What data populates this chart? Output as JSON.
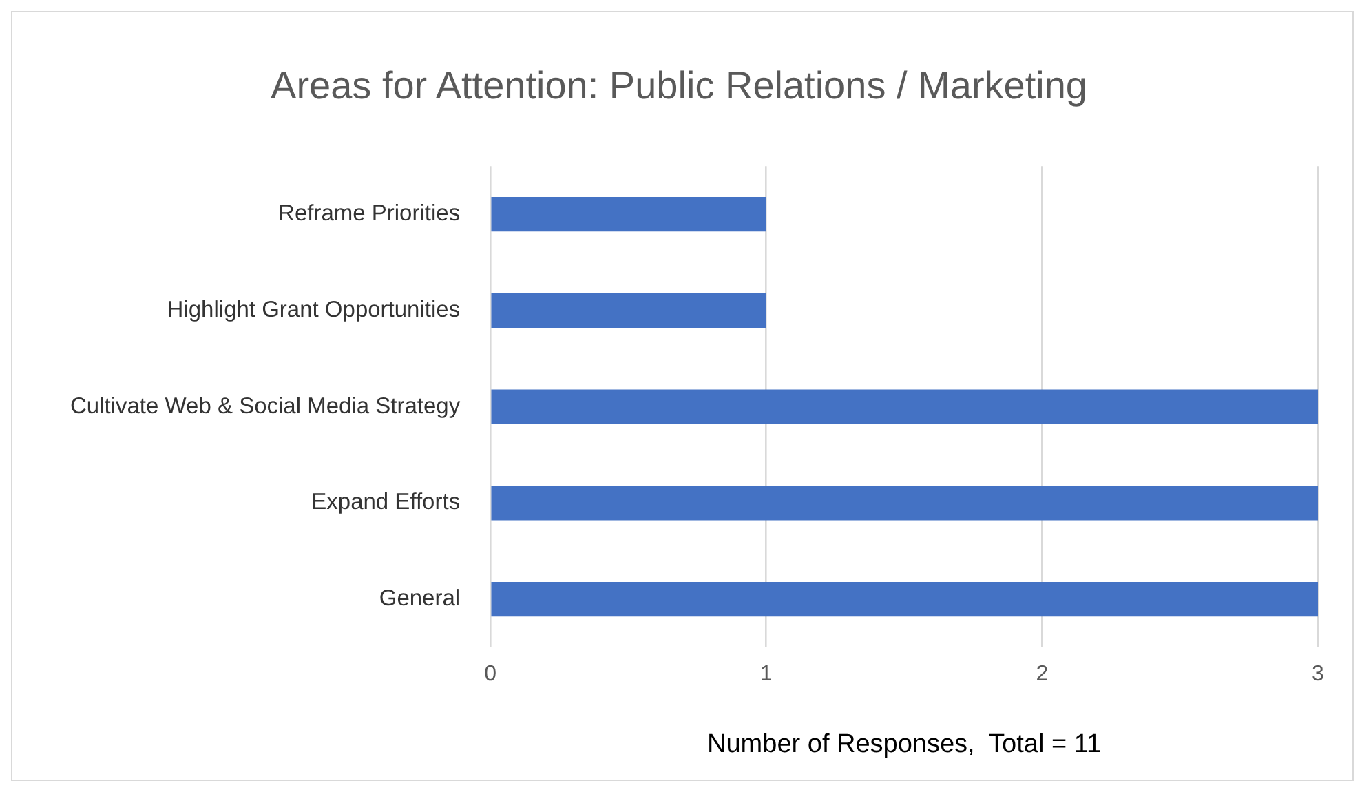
{
  "chart_data": {
    "type": "bar",
    "title": "Areas for Attention: Public Relations / Marketing",
    "xlabel": "Number of Responses,  Total = 11",
    "orientation": "horizontal",
    "categories": [
      "Reframe Priorities",
      "Highlight Grant Opportunities",
      "Cultivate Web & Social Media Strategy",
      "Expand Efforts",
      "General"
    ],
    "values": [
      1,
      1,
      3,
      3,
      3
    ],
    "color": "#4472c4",
    "xlim": [
      0,
      3
    ],
    "xticks": [
      0,
      1,
      2,
      3
    ],
    "grid": "x",
    "legend": false
  }
}
